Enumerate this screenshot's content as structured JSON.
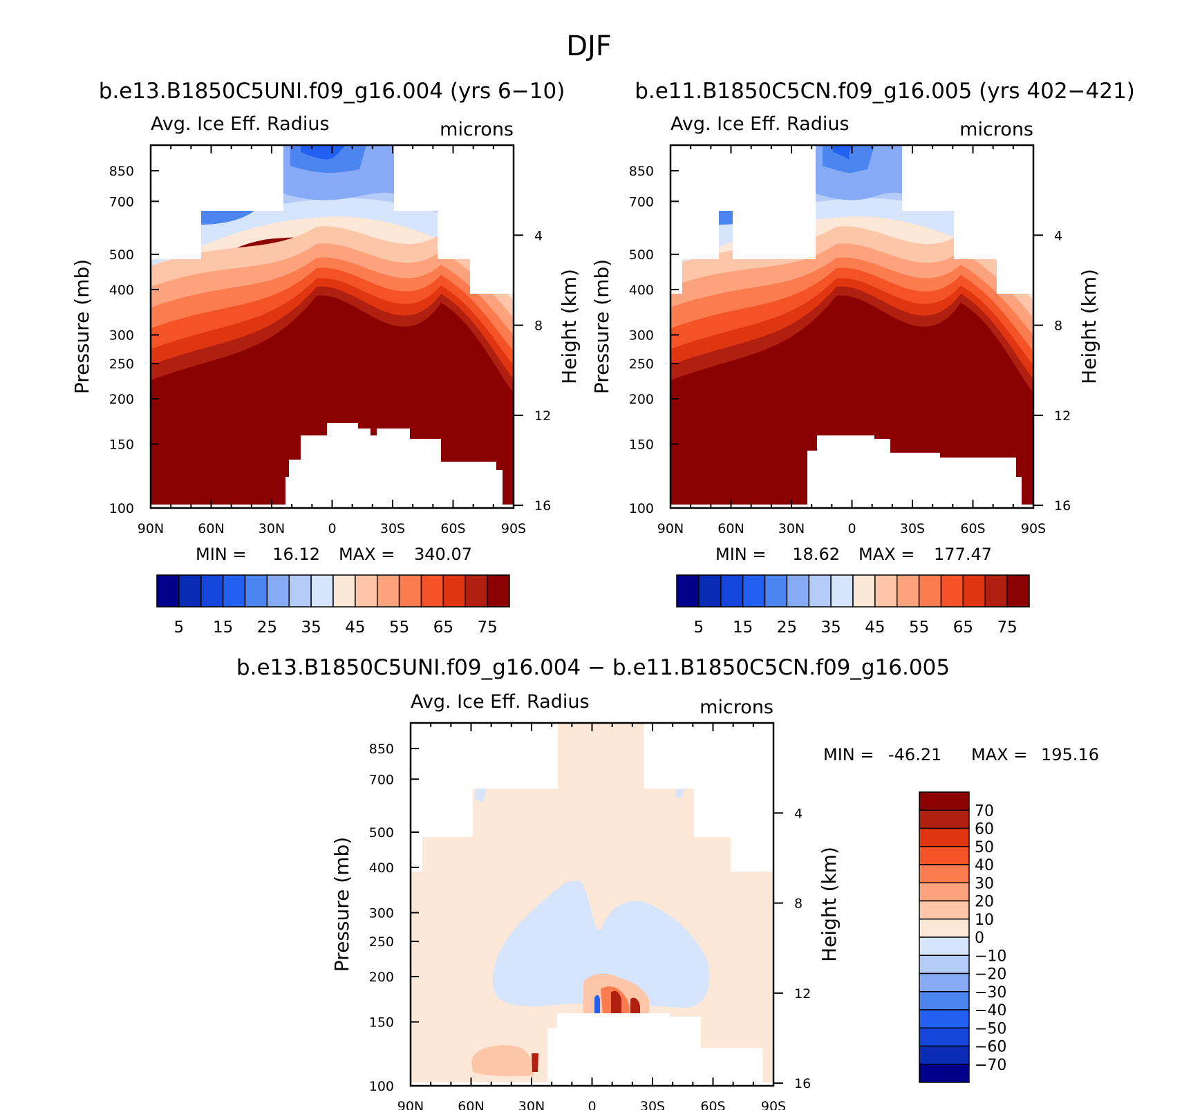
{
  "figure_title": "DJF",
  "panel_labels": {
    "left_title": "Avg. Ice Eff. Radius",
    "right_title": "microns",
    "y_left_label": "Pressure (mb)",
    "y_right_label": "Height (km)"
  },
  "panels": [
    {
      "id": "case",
      "case_title": "b.e13.B1850C5UNI.f09_g16.004 (yrs 6-10)",
      "stats_min_label": "MIN =",
      "stats_min": "16.12",
      "stats_max_label": "MAX =",
      "stats_max": "340.07"
    },
    {
      "id": "control",
      "case_title": "b.e11.B1850C5CN.f09_g16.005 (yrs 402-421)",
      "stats_min_label": "MIN =",
      "stats_min": "18.62",
      "stats_max_label": "MAX =",
      "stats_max": "177.47"
    },
    {
      "id": "difference",
      "case_title": "b.e13.B1850C5UNI.f09_g16.004 - b.e11.B1850C5CN.f09_g16.005",
      "stats_min_label": "MIN =",
      "stats_min": "-46.21",
      "stats_max_label": "MAX =",
      "stats_max": "195.16"
    }
  ],
  "chart_data": [
    {
      "type": "heatmap",
      "title": "b.e13.B1850C5UNI.f09_g16.004 (yrs 6-10)",
      "variable": "Avg. Ice Eff. Radius",
      "units": "microns",
      "xlabel": "",
      "ylabel": "Pressure (mb)",
      "ylabel_right": "Height (km)",
      "x_ticks": [
        "90N",
        "60N",
        "30N",
        "0",
        "30S",
        "60S",
        "90S"
      ],
      "y_ticks": [
        100,
        150,
        200,
        250,
        300,
        400,
        500,
        700,
        850
      ],
      "y_right_ticks": [
        16,
        12,
        8,
        4
      ],
      "ylim": [
        1000,
        100
      ],
      "colorbar_levels": [
        5,
        10,
        15,
        20,
        25,
        30,
        35,
        40,
        45,
        50,
        55,
        60,
        65,
        70,
        75
      ],
      "colorbar_labels": [
        "5",
        "15",
        "25",
        "35",
        "45",
        "55",
        "65",
        "75"
      ],
      "min": 16.12,
      "max": 340.07
    },
    {
      "type": "heatmap",
      "title": "b.e11.B1850C5CN.f09_g16.005 (yrs 402-421)",
      "variable": "Avg. Ice Eff. Radius",
      "units": "microns",
      "xlabel": "",
      "ylabel": "Pressure (mb)",
      "ylabel_right": "Height (km)",
      "x_ticks": [
        "90N",
        "60N",
        "30N",
        "0",
        "30S",
        "60S",
        "90S"
      ],
      "y_ticks": [
        100,
        150,
        200,
        250,
        300,
        400,
        500,
        700,
        850
      ],
      "y_right_ticks": [
        16,
        12,
        8,
        4
      ],
      "ylim": [
        1000,
        100
      ],
      "colorbar_levels": [
        5,
        10,
        15,
        20,
        25,
        30,
        35,
        40,
        45,
        50,
        55,
        60,
        65,
        70,
        75
      ],
      "colorbar_labels": [
        "5",
        "15",
        "25",
        "35",
        "45",
        "55",
        "65",
        "75"
      ],
      "min": 18.62,
      "max": 177.47
    },
    {
      "type": "heatmap",
      "title": "b.e13.B1850C5UNI.f09_g16.004 - b.e11.B1850C5CN.f09_g16.005",
      "variable": "Avg. Ice Eff. Radius",
      "units": "microns",
      "xlabel": "",
      "ylabel": "Pressure (mb)",
      "ylabel_right": "Height (km)",
      "x_ticks": [
        "90N",
        "60N",
        "30N",
        "0",
        "30S",
        "60S",
        "90S"
      ],
      "y_ticks": [
        100,
        150,
        200,
        250,
        300,
        400,
        500,
        700,
        850
      ],
      "y_right_ticks": [
        16,
        12,
        8,
        4
      ],
      "ylim": [
        1000,
        100
      ],
      "colorbar_levels": [
        70,
        60,
        50,
        40,
        30,
        20,
        10,
        0,
        -10,
        -20,
        -30,
        -40,
        -50,
        -60,
        -70
      ],
      "colorbar_labels": [
        "70",
        "60",
        "50",
        "40",
        "30",
        "20",
        "10",
        "0",
        "-10",
        "-20",
        "-30",
        "-40",
        "-50",
        "-60",
        "-70"
      ],
      "min": -46.21,
      "max": 195.16
    }
  ],
  "palettes": {
    "absolute": [
      "#00008b",
      "#0a2bb4",
      "#1446dc",
      "#2160f0",
      "#4d85f0",
      "#86aaf5",
      "#b4cbf8",
      "#d6e5fb",
      "#fde8d8",
      "#fdc6a8",
      "#fca27c",
      "#fb7c4e",
      "#f45327",
      "#df3510",
      "#b02010",
      "#8b0000"
    ],
    "difference": [
      "#8b0000",
      "#b02010",
      "#df3510",
      "#f45327",
      "#fb7c4e",
      "#fca27c",
      "#fdc6a8",
      "#fde8d8",
      "#d6e5fb",
      "#b4cbf8",
      "#86aaf5",
      "#4d85f0",
      "#2160f0",
      "#1446dc",
      "#0a2bb4",
      "#00008b"
    ]
  }
}
